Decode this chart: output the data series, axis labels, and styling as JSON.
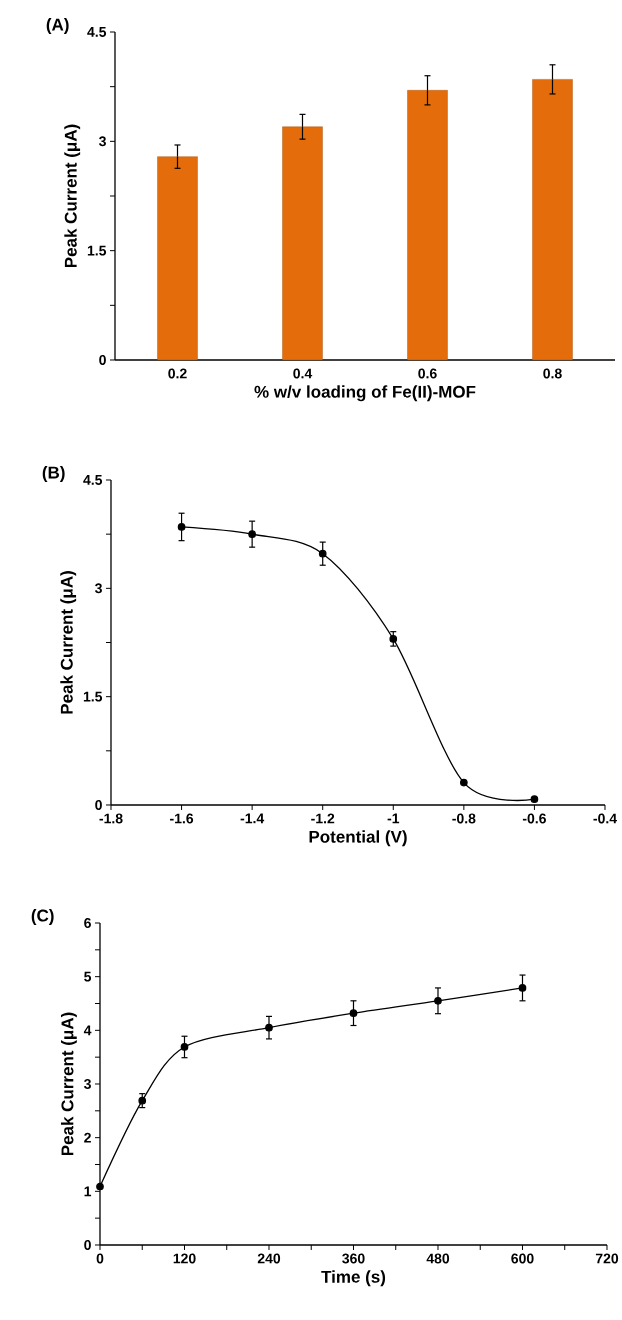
{
  "chart_data": [
    {
      "type": "bar",
      "title": "(A)",
      "xlabel": "% w/v loading of Fe(II)-MOF",
      "ylabel": "Peak Current (μA)",
      "categories": [
        "0.2",
        "0.4",
        "0.6",
        "0.8"
      ],
      "values": [
        2.79,
        3.2,
        3.7,
        3.85
      ],
      "errors": [
        0.16,
        0.17,
        0.2,
        0.2
      ],
      "color": "#e46c0a",
      "ylim": [
        0,
        4.5
      ],
      "yticks": [
        0,
        {
          "value": 0.75,
          "label": null
        },
        1.5,
        {
          "value": 2.25,
          "label": null
        },
        3,
        {
          "value": 3.75,
          "label": null
        },
        4.5
      ]
    },
    {
      "type": "line",
      "title": "(B)",
      "xlabel": "Potential (V)",
      "ylabel": "Peak Current (μA)",
      "x": [
        -1.6,
        -1.4,
        -1.2,
        -1.0,
        -0.8,
        -0.6
      ],
      "values": [
        3.85,
        3.75,
        3.48,
        2.3,
        0.31,
        0.08
      ],
      "errors": [
        0.19,
        0.18,
        0.16,
        0.1,
        null,
        null
      ],
      "color": "#000000",
      "marker": "circle",
      "xlim": [
        -1.8,
        -0.4
      ],
      "xticks": [
        -1.8,
        -1.6,
        -1.4,
        -1.2,
        -1,
        -0.8,
        -0.6,
        -0.4
      ],
      "ylim": [
        0,
        4.5
      ],
      "yticks": [
        0,
        {
          "value": 0.75,
          "label": null
        },
        1.5,
        {
          "value": 2.25,
          "label": null
        },
        3,
        {
          "value": 3.75,
          "label": null
        },
        4.5
      ]
    },
    {
      "type": "line",
      "title": "(C)",
      "xlabel": "Time (s)",
      "ylabel": "Peak Current (μA)",
      "x": [
        0,
        60,
        120,
        240,
        360,
        480,
        600
      ],
      "values": [
        1.09,
        2.69,
        3.69,
        4.05,
        4.32,
        4.55,
        4.79
      ],
      "errors": [
        null,
        0.13,
        0.2,
        0.21,
        0.23,
        0.24,
        0.24
      ],
      "color": "#000000",
      "marker": "circle",
      "xlim": [
        0,
        720
      ],
      "xticks": [
        0,
        {
          "value": 60,
          "label": null
        },
        120,
        {
          "value": 180,
          "label": null
        },
        240,
        {
          "value": 300,
          "label": null
        },
        360,
        {
          "value": 420,
          "label": null
        },
        480,
        {
          "value": 540,
          "label": null
        },
        600,
        {
          "value": 660,
          "label": null
        },
        720
      ],
      "ylim": [
        0,
        6
      ],
      "yticks": [
        0,
        {
          "value": 0.5,
          "label": null
        },
        1,
        {
          "value": 1.5,
          "label": null
        },
        2,
        {
          "value": 2.5,
          "label": null
        },
        3,
        {
          "value": 3.5,
          "label": null
        },
        4,
        {
          "value": 4.5,
          "label": null
        },
        5,
        {
          "value": 5.5,
          "label": null
        },
        6
      ]
    }
  ]
}
